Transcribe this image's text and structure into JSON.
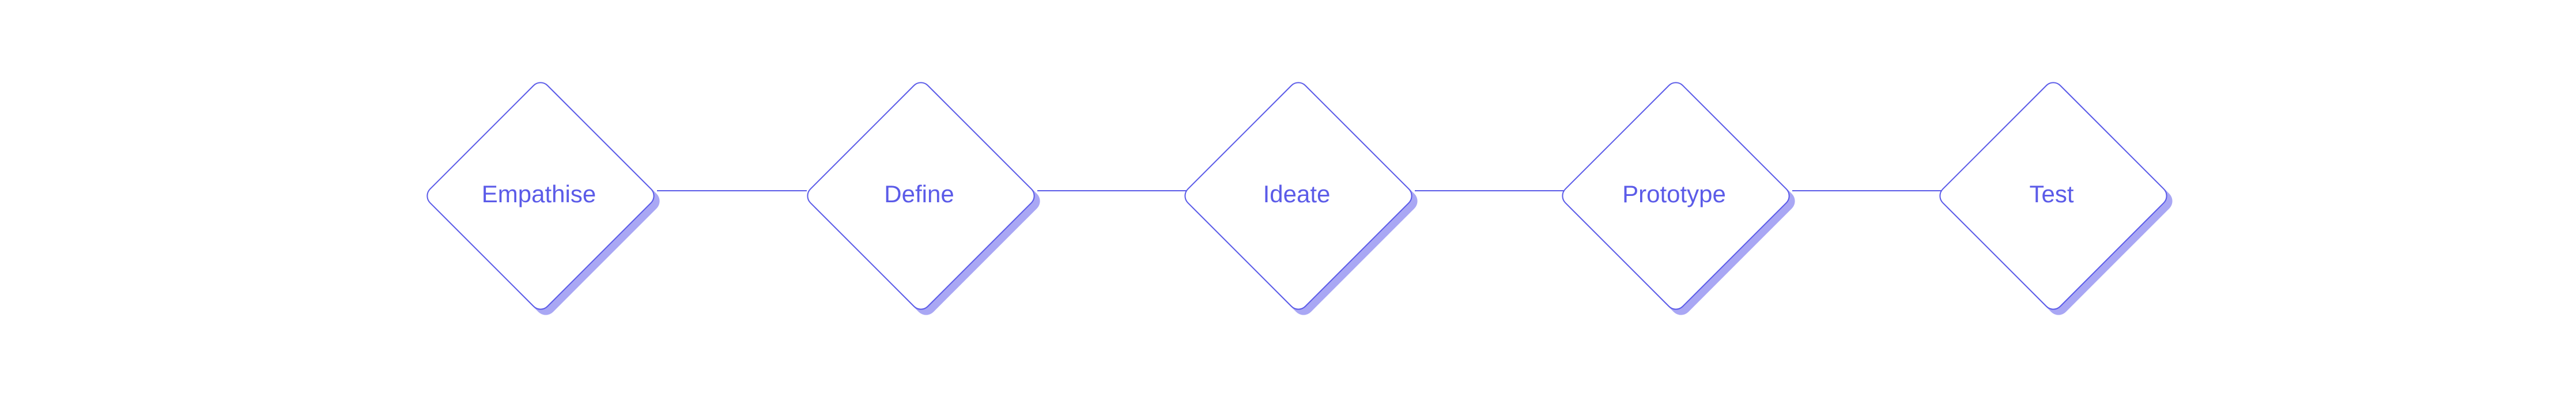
{
  "diagram": {
    "accent_color": "#5b5be8",
    "shadow_color": "#a9a7f4",
    "steps": [
      {
        "label": "Empathise"
      },
      {
        "label": "Define"
      },
      {
        "label": "Ideate"
      },
      {
        "label": "Prototype"
      },
      {
        "label": "Test"
      }
    ]
  }
}
